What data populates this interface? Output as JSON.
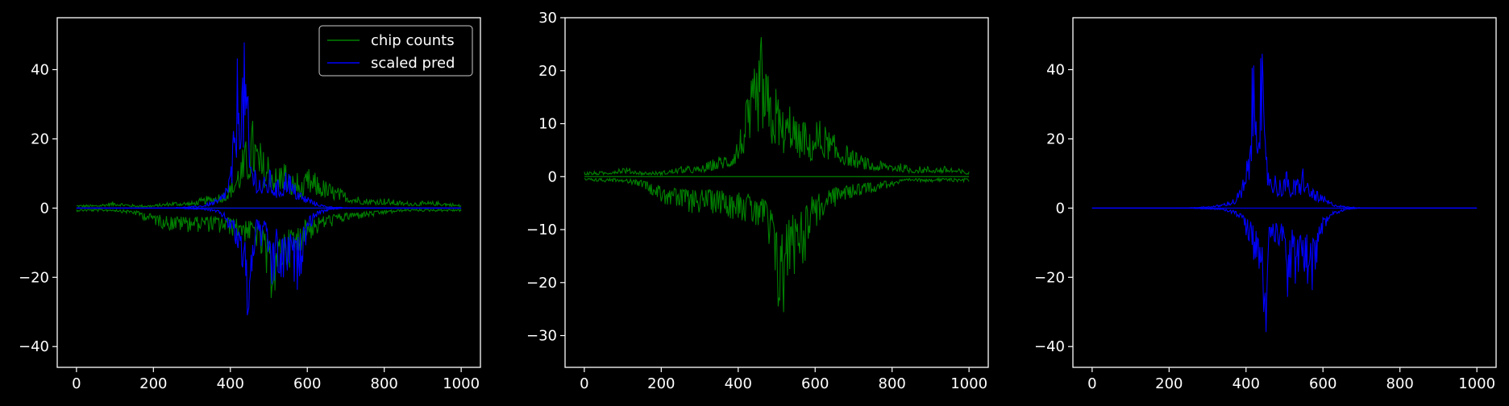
{
  "theme": {
    "background": "#000000",
    "axes_color": "#ffffff",
    "text_color": "#ffffff"
  },
  "chart_data": [
    {
      "type": "line",
      "title": "",
      "xlabel": "",
      "ylabel": "",
      "xlim": [
        -50,
        1050
      ],
      "ylim": [
        -46,
        55
      ],
      "xticks": [
        0,
        200,
        400,
        600,
        800,
        1000
      ],
      "yticks": [
        -40,
        -20,
        0,
        20,
        40
      ],
      "legend": {
        "position": "top-right",
        "entries": [
          {
            "label": "chip counts",
            "color": "#008000"
          },
          {
            "label": "scaled pred",
            "color": "#0000ff"
          }
        ]
      },
      "series": [
        {
          "name": "chip counts",
          "color": "#008000",
          "x": [
            0,
            50,
            100,
            150,
            200,
            250,
            300,
            350,
            380,
            400,
            420,
            440,
            460,
            470,
            480,
            490,
            500,
            510,
            520,
            530,
            540,
            550,
            560,
            570,
            580,
            590,
            600,
            650,
            700,
            750,
            800,
            850,
            900,
            950,
            1000
          ],
          "upper": [
            1,
            1,
            2,
            1,
            1,
            2,
            2,
            4,
            5,
            8,
            14,
            20,
            27,
            22,
            19,
            16,
            18,
            15,
            12,
            14,
            16,
            11,
            10,
            12,
            9,
            8,
            12,
            8,
            5,
            3,
            3,
            2,
            2,
            2,
            1
          ],
          "lower": [
            -1,
            -1,
            -1,
            -2,
            -5,
            -7,
            -7,
            -7,
            -8,
            -8,
            -9,
            -10,
            -11,
            -12,
            -16,
            -20,
            -29,
            -25,
            -33,
            -19,
            -20,
            -18,
            -16,
            -18,
            -14,
            -10,
            -10,
            -6,
            -4,
            -3,
            -2,
            -1,
            -1,
            -1,
            -1
          ]
        },
        {
          "name": "scaled pred",
          "color": "#0000ff",
          "x": [
            0,
            50,
            100,
            150,
            200,
            250,
            300,
            330,
            350,
            370,
            380,
            390,
            400,
            410,
            420,
            430,
            440,
            450,
            460,
            470,
            480,
            490,
            500,
            510,
            520,
            530,
            540,
            550,
            560,
            570,
            580,
            590,
            600,
            620,
            640,
            660,
            680,
            700,
            750,
            800,
            900,
            1000
          ],
          "upper": [
            0,
            0,
            0,
            0,
            0,
            0.1,
            0.5,
            1,
            2,
            3,
            5,
            8,
            12,
            25,
            51,
            45,
            51,
            20,
            15,
            12,
            10,
            9,
            12,
            10,
            8,
            9,
            10,
            14,
            8,
            7,
            6,
            4,
            4,
            2,
            1,
            0.5,
            0.3,
            0.1,
            0,
            0,
            0,
            0
          ],
          "lower": [
            0,
            0,
            0,
            0,
            0,
            0,
            -0.3,
            -0.5,
            -1,
            -2,
            -3,
            -5,
            -8,
            -10,
            -15,
            -20,
            -29,
            -42,
            -16,
            -8,
            -12,
            -10,
            -18,
            -29,
            -17,
            -27,
            -23,
            -20,
            -22,
            -26,
            -22,
            -15,
            -8,
            -3,
            -1.5,
            -0.5,
            -0.2,
            0,
            0,
            0,
            0,
            0
          ]
        }
      ]
    },
    {
      "type": "line",
      "title": "",
      "xlabel": "",
      "ylabel": "",
      "xlim": [
        -50,
        1050
      ],
      "ylim": [
        -36,
        30
      ],
      "xticks": [
        0,
        200,
        400,
        600,
        800,
        1000
      ],
      "yticks": [
        -30,
        -20,
        -10,
        0,
        10,
        20,
        30
      ],
      "series": [
        {
          "name": "chip counts",
          "color": "#008000",
          "x": [
            0,
            50,
            100,
            150,
            200,
            250,
            300,
            350,
            380,
            400,
            420,
            440,
            460,
            470,
            480,
            490,
            500,
            510,
            520,
            530,
            540,
            550,
            560,
            570,
            580,
            590,
            600,
            650,
            700,
            750,
            800,
            850,
            900,
            950,
            1000
          ],
          "upper": [
            1,
            1,
            2,
            1,
            1,
            2,
            2,
            4,
            5,
            8,
            14,
            20,
            27,
            22,
            19,
            16,
            18,
            15,
            12,
            14,
            16,
            11,
            10,
            12,
            9,
            8,
            12,
            8,
            5,
            3,
            3,
            2,
            2,
            2,
            1
          ],
          "lower": [
            -1,
            -1,
            -1,
            -2,
            -5,
            -7,
            -7,
            -7,
            -8,
            -8,
            -9,
            -10,
            -11,
            -12,
            -16,
            -20,
            -29,
            -25,
            -33,
            -19,
            -20,
            -18,
            -16,
            -18,
            -14,
            -10,
            -10,
            -6,
            -4,
            -3,
            -2,
            -1,
            -1,
            -1,
            -1
          ]
        }
      ]
    },
    {
      "type": "line",
      "title": "",
      "xlabel": "",
      "ylabel": "",
      "xlim": [
        -50,
        1050
      ],
      "ylim": [
        -46,
        55
      ],
      "xticks": [
        0,
        200,
        400,
        600,
        800,
        1000
      ],
      "yticks": [
        -40,
        -20,
        0,
        20,
        40
      ],
      "series": [
        {
          "name": "scaled pred",
          "color": "#0000ff",
          "x": [
            0,
            50,
            100,
            150,
            200,
            250,
            300,
            330,
            350,
            370,
            380,
            390,
            400,
            410,
            420,
            430,
            440,
            450,
            460,
            470,
            480,
            490,
            500,
            510,
            520,
            530,
            540,
            550,
            560,
            570,
            580,
            590,
            600,
            620,
            640,
            660,
            680,
            700,
            750,
            800,
            900,
            1000
          ],
          "upper": [
            0,
            0,
            0,
            0,
            0,
            0.1,
            0.5,
            1,
            2,
            3,
            5,
            8,
            12,
            25,
            51,
            45,
            51,
            20,
            15,
            12,
            10,
            9,
            12,
            10,
            8,
            9,
            10,
            14,
            8,
            7,
            6,
            4,
            4,
            2,
            1,
            0.5,
            0.3,
            0.1,
            0,
            0,
            0,
            0
          ],
          "lower": [
            0,
            0,
            0,
            0,
            0,
            0,
            -0.3,
            -0.5,
            -1,
            -2,
            -3,
            -5,
            -8,
            -10,
            -15,
            -20,
            -29,
            -42,
            -16,
            -8,
            -12,
            -10,
            -18,
            -29,
            -17,
            -27,
            -23,
            -20,
            -22,
            -26,
            -22,
            -15,
            -8,
            -3,
            -1.5,
            -0.5,
            -0.2,
            0,
            0,
            0,
            0,
            0
          ]
        }
      ]
    }
  ]
}
